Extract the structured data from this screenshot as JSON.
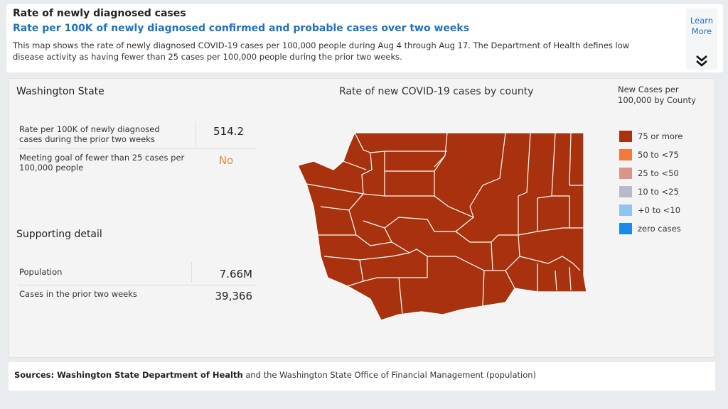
{
  "header": {
    "title": "Rate of newly diagnosed cases",
    "subtitle": "Rate per 100K of newly diagnosed confirmed and probable cases over two weeks",
    "description": "This map shows the rate of newly diagnosed COVID-19 cases per 100,000 people during Aug 4 through Aug 17. The Department of Health defines low disease activity as having fewer than 25 cases per 100,000 people during the prior two weeks.",
    "learn_more_line1": "Learn",
    "learn_more_line2": "More",
    "expand_icon": "double-chevron-down-icon"
  },
  "state_summary": {
    "title": "Washington State",
    "rate_label": "Rate per 100K of newly diagnosed cases during the prior two weeks",
    "rate_value": "514.2",
    "goal_label": "Meeting goal of fewer than 25 cases per 100,000 people",
    "goal_value": "No"
  },
  "supporting": {
    "title": "Supporting detail",
    "population_label": "Population",
    "population_value": "7.66M",
    "cases_label": "Cases in the prior two weeks",
    "cases_value": "39,366"
  },
  "map": {
    "title": "Rate of new COVID-19 cases by county",
    "fill_color": "#a8320e",
    "border_color": "#ffffff"
  },
  "legend": {
    "title_line1": "New Cases per",
    "title_line2": "100,000 by County",
    "items": [
      {
        "label": "75 or more",
        "color": "#a8320e"
      },
      {
        "label": "50 to <75",
        "color": "#ef7a3a"
      },
      {
        "label": "25 to <50",
        "color": "#d9958a"
      },
      {
        "label": "10 to <25",
        "color": "#b9b9cc"
      },
      {
        "label": "+0 to <10",
        "color": "#8fc4f2"
      },
      {
        "label": "zero cases",
        "color": "#1e88e5"
      }
    ]
  },
  "footer": {
    "prefix": "Sources: ",
    "doh": "Washington State Department of Health",
    "rest": " and the Washington State Office of Financial Management (population)"
  }
}
